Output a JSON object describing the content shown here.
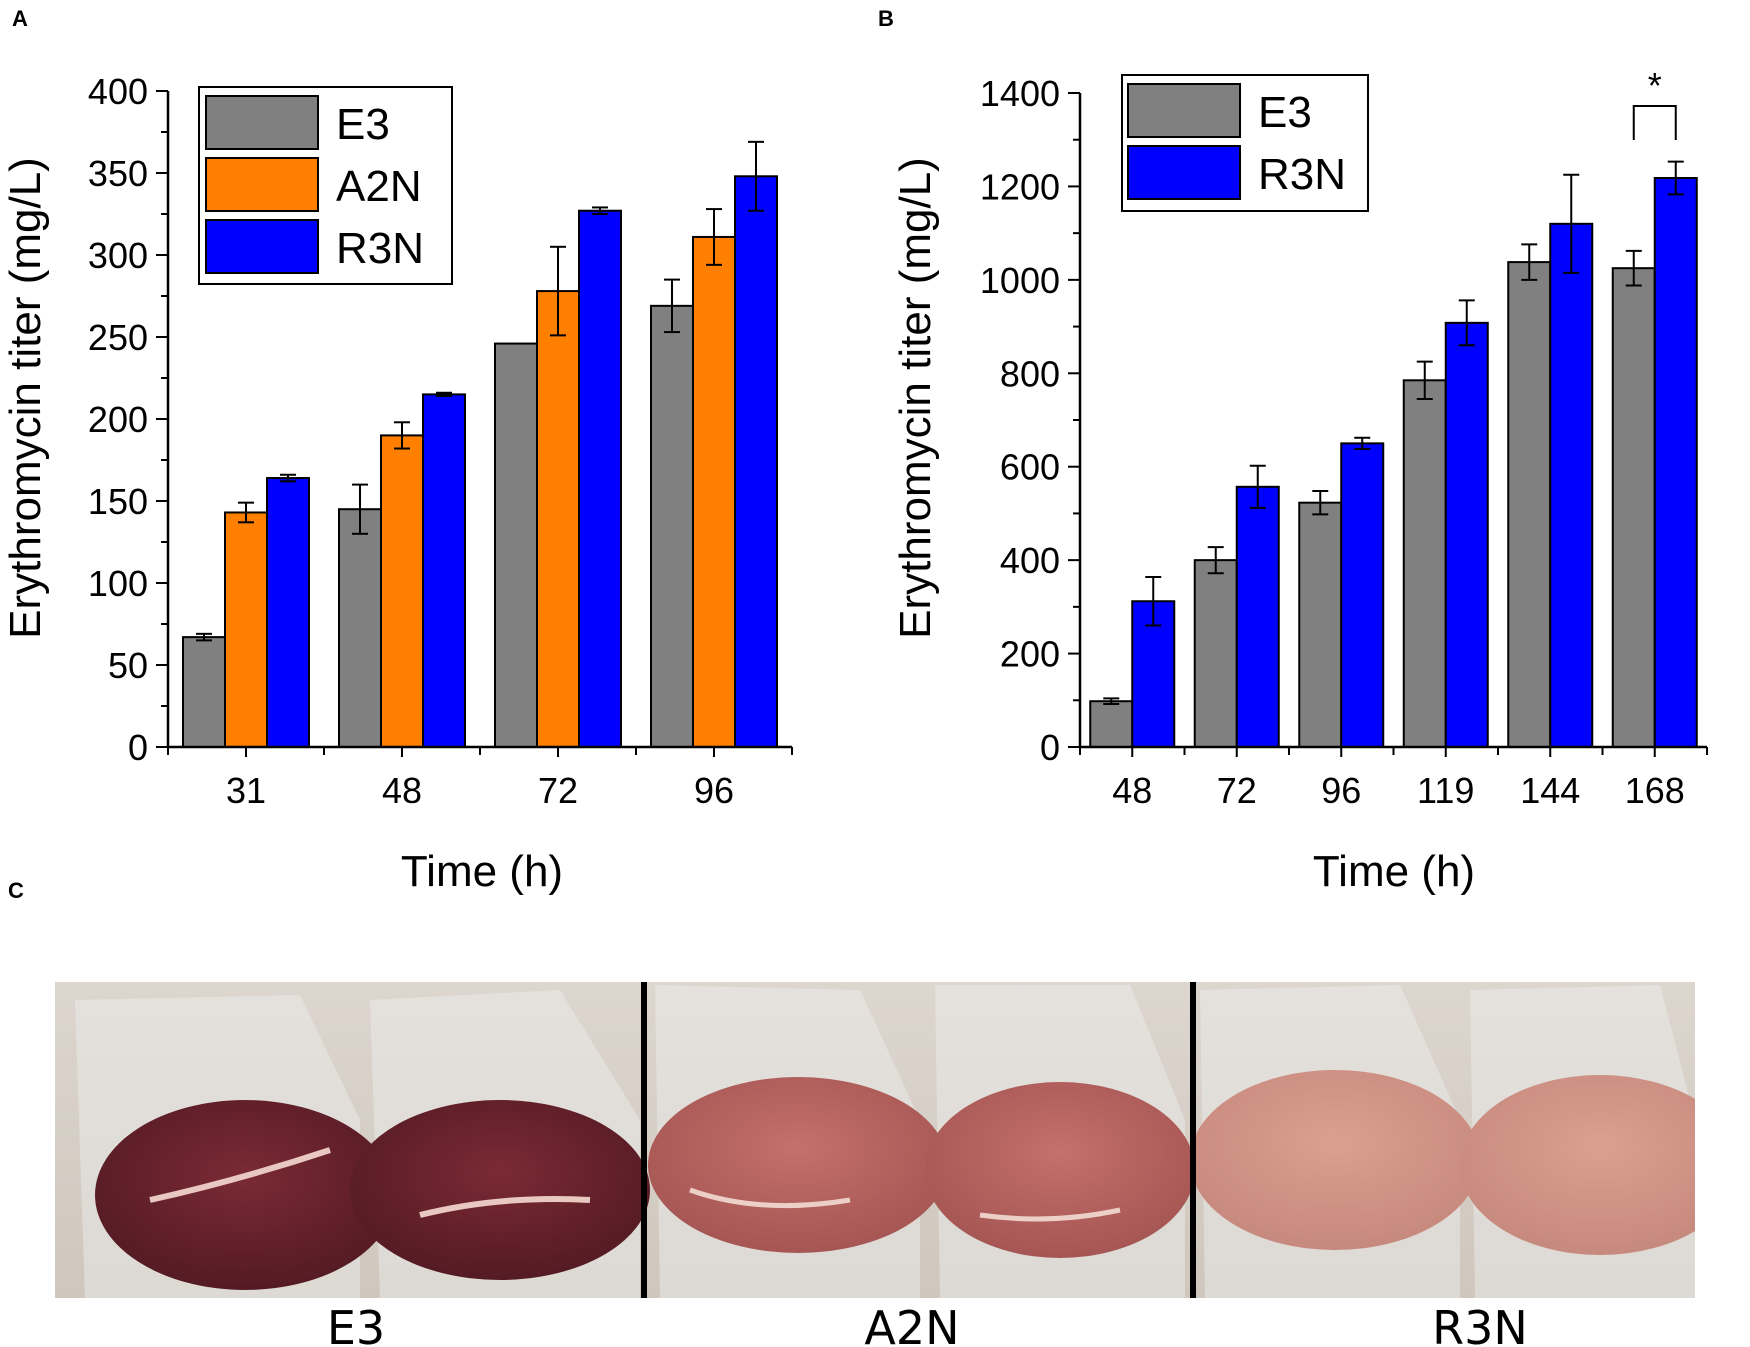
{
  "figure": {
    "panel_labels": [
      "A",
      "B",
      "C"
    ]
  },
  "colors": {
    "E3": "#808080",
    "A2N": "#ff7f00",
    "R3N": "#0000ff"
  },
  "chart_data": [
    {
      "id": "A",
      "type": "bar",
      "xlabel": "Time (h)",
      "ylabel": "Erythromycin titer (mg/L)",
      "ylim": [
        0,
        400
      ],
      "yticks": [
        0,
        50,
        100,
        150,
        200,
        250,
        300,
        350,
        400
      ],
      "categories": [
        "31",
        "48",
        "72",
        "96"
      ],
      "legend_position": "top-left",
      "series": [
        {
          "name": "E3",
          "values": [
            67,
            145,
            246,
            269
          ],
          "errors": [
            2,
            15,
            0,
            16
          ]
        },
        {
          "name": "A2N",
          "values": [
            143,
            190,
            278,
            311
          ],
          "errors": [
            6,
            8,
            27,
            17
          ]
        },
        {
          "name": "R3N",
          "values": [
            164,
            215,
            327,
            348
          ],
          "errors": [
            2,
            1,
            2,
            21
          ]
        }
      ]
    },
    {
      "id": "B",
      "type": "bar",
      "xlabel": "Time (h)",
      "ylabel": "Erythromycin titer (mg/L)",
      "ylim": [
        0,
        1400
      ],
      "yticks": [
        0,
        200,
        400,
        600,
        800,
        1000,
        1200,
        1400
      ],
      "categories": [
        "48",
        "72",
        "96",
        "119",
        "144",
        "168"
      ],
      "legend_position": "top-left",
      "series": [
        {
          "name": "E3",
          "values": [
            98,
            400,
            523,
            785,
            1038,
            1025
          ],
          "errors": [
            6,
            28,
            25,
            40,
            38,
            37
          ]
        },
        {
          "name": "R3N",
          "values": [
            312,
            557,
            650,
            908,
            1120,
            1218
          ],
          "errors": [
            52,
            45,
            12,
            48,
            105,
            35
          ]
        }
      ],
      "annotation": {
        "text": "*",
        "between_category": "168"
      }
    }
  ],
  "photo": {
    "labels": [
      "E3",
      "A2N",
      "R3N"
    ]
  }
}
